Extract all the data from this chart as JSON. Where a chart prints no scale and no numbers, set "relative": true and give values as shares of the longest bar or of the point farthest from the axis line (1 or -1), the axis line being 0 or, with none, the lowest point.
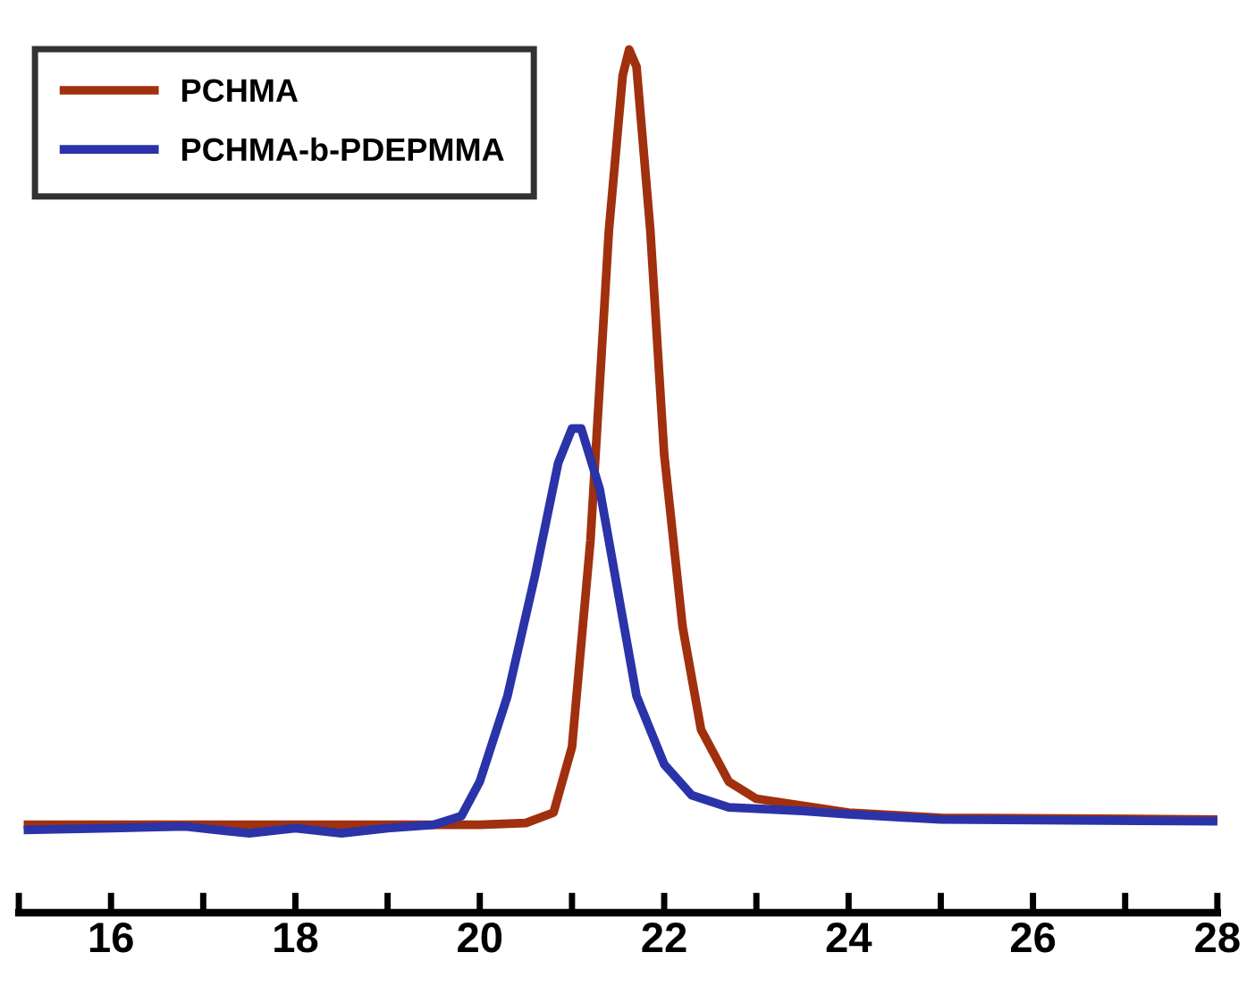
{
  "chart_data": {
    "type": "line",
    "relative": true,
    "legend": "top left",
    "grid": false,
    "marker": "none",
    "line_style": "solid",
    "xlim": [
      15,
      28
    ],
    "xticks": [
      {
        "value": 15,
        "label": null
      },
      16,
      {
        "value": 17,
        "label": null
      },
      18,
      {
        "value": 19,
        "label": null
      },
      20,
      {
        "value": 21,
        "label": null
      },
      22,
      {
        "value": 23,
        "label": null
      },
      24,
      {
        "value": 25,
        "label": null
      },
      26,
      {
        "value": 27,
        "label": null
      },
      28
    ],
    "series": [
      {
        "name": "PCHMA",
        "color": "#a0300e",
        "x": [
          15.1,
          16,
          17,
          18,
          19,
          20,
          20.5,
          20.8,
          21.0,
          21.2,
          21.4,
          21.55,
          21.62,
          21.7,
          21.85,
          22.0,
          22.2,
          22.4,
          22.7,
          23.0,
          24,
          25,
          28
        ],
        "values": [
          0.102,
          0.102,
          0.102,
          0.102,
          0.102,
          0.102,
          0.104,
          0.116,
          0.192,
          0.431,
          0.79,
          0.97,
          1.0,
          0.98,
          0.79,
          0.531,
          0.331,
          0.212,
          0.152,
          0.132,
          0.116,
          0.11,
          0.108
        ]
      },
      {
        "name": "PCHMA-b-PDEPMMA",
        "color": "#2a33a8",
        "x": [
          15.1,
          16,
          16.8,
          17.5,
          18,
          18.5,
          19,
          19.5,
          19.8,
          20.0,
          20.3,
          20.6,
          20.85,
          21.0,
          21.1,
          21.3,
          21.5,
          21.7,
          22.0,
          22.3,
          22.7,
          23.5,
          24,
          25,
          28
        ],
        "values": [
          0.096,
          0.098,
          0.1,
          0.092,
          0.098,
          0.092,
          0.098,
          0.102,
          0.112,
          0.152,
          0.251,
          0.391,
          0.521,
          0.561,
          0.561,
          0.491,
          0.371,
          0.251,
          0.172,
          0.136,
          0.122,
          0.118,
          0.114,
          0.108,
          0.106
        ]
      }
    ]
  }
}
